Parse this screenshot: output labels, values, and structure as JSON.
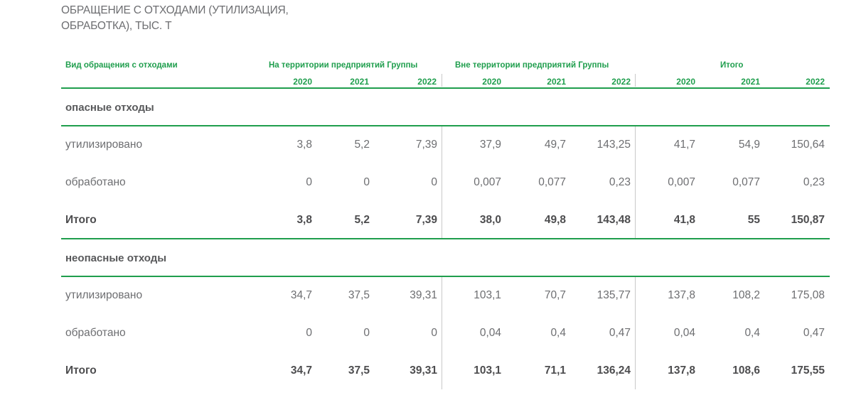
{
  "title_line1": "ОБРАЩЕНИЕ С ОТХОДАМИ (УТИЛИЗАЦИЯ,",
  "title_line2": "ОБРАБОТКА), ТЫС. Т",
  "header": {
    "col0": "Вид обращения с отходами",
    "group1": "На территории предприятий Группы",
    "group2": "Вне территории предприятий Группы",
    "group3": "Итого",
    "years": [
      "2020",
      "2021",
      "2022",
      "2020",
      "2021",
      "2022",
      "2020",
      "2021",
      "2022"
    ]
  },
  "sections": [
    {
      "title": "опасные отходы",
      "rows": [
        {
          "label": "утилизировано",
          "values": [
            "3,8",
            "5,2",
            "7,39",
            "37,9",
            "49,7",
            "143,25",
            "41,7",
            "54,9",
            "150,64"
          ]
        },
        {
          "label": "обработано",
          "values": [
            "0",
            "0",
            "0",
            "0,007",
            "0,077",
            "0,23",
            "0,007",
            "0,077",
            "0,23"
          ]
        },
        {
          "label": "Итого",
          "values": [
            "3,8",
            "5,2",
            "7,39",
            "38,0",
            "49,8",
            "143,48",
            "41,8",
            "55",
            "150,87"
          ]
        }
      ]
    },
    {
      "title": "неопасные отходы",
      "rows": [
        {
          "label": "утилизировано",
          "values": [
            "34,7",
            "37,5",
            "39,31",
            "103,1",
            "70,7",
            "135,77",
            "137,8",
            "108,2",
            "175,08"
          ]
        },
        {
          "label": "обработано",
          "values": [
            "0",
            "0",
            "0",
            "0,04",
            "0,4",
            "0,47",
            "0,04",
            "0,4",
            "0,47"
          ]
        },
        {
          "label": "Итого",
          "values": [
            "34,7",
            "37,5",
            "39,31",
            "103,1",
            "71,1",
            "136,24",
            "137,8",
            "108,6",
            "175,55"
          ]
        }
      ]
    }
  ]
}
